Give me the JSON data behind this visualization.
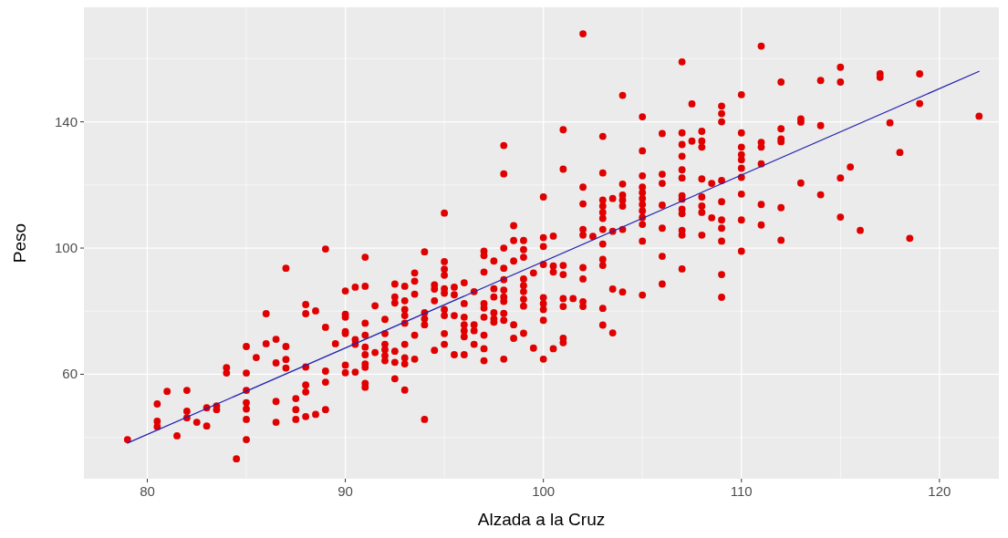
{
  "chart_data": {
    "type": "scatter",
    "xlabel": "Alzada a la Cruz",
    "ylabel": "Peso",
    "xlim": [
      76.8,
      123.0
    ],
    "ylim": [
      26.9,
      176.3
    ],
    "xticks": [
      80,
      90,
      100,
      110,
      120
    ],
    "yticks": [
      60,
      100,
      140
    ],
    "grid": true,
    "series": [
      {
        "marker": "circle",
        "color": "#e00000",
        "x": [
          79,
          80.5,
          80.5,
          80.5,
          81,
          81.5,
          82,
          82,
          82,
          82.5,
          83,
          83,
          83.5,
          83.5,
          84,
          84,
          84.5,
          85,
          85,
          85,
          85,
          85,
          85,
          85,
          85.5,
          86,
          86,
          86.5,
          86.5,
          86.5,
          86.5,
          87,
          87,
          87,
          87,
          87.5,
          87.5,
          87.5,
          88,
          88,
          88,
          88,
          88,
          88,
          88.5,
          88.5,
          89,
          89,
          89,
          89,
          89,
          89.5,
          90,
          90,
          90,
          90,
          90,
          90,
          90,
          90.5,
          90.5,
          90.5,
          90.5,
          91,
          91,
          91,
          91,
          91,
          91,
          91,
          91,
          91,
          91,
          91.5,
          91.5,
          92,
          92,
          92,
          92,
          92,
          92,
          92.5,
          92.5,
          92.5,
          92.5,
          92.5,
          92.5,
          93,
          93,
          93,
          93,
          93,
          93,
          93,
          93,
          93,
          93.5,
          93.5,
          93.5,
          93.5,
          93.5,
          94,
          94,
          94,
          94,
          94,
          94.5,
          94.5,
          94.5,
          94.5,
          95,
          95,
          95,
          95,
          95,
          95,
          95,
          95,
          95,
          95,
          95.5,
          95.5,
          95.5,
          95.5,
          96,
          96,
          96,
          96,
          96,
          96,
          96,
          96.5,
          96.5,
          96.5,
          96.5,
          97,
          97,
          97,
          97,
          97,
          97,
          97,
          97,
          97,
          97.5,
          97.5,
          97.5,
          97.5,
          97.5,
          97.5,
          98,
          98,
          98,
          98,
          98,
          98,
          98,
          98,
          98,
          98,
          98,
          98.5,
          98.5,
          98.5,
          98.5,
          98.5,
          99,
          99,
          99,
          99,
          99,
          99,
          99,
          99,
          99,
          99.5,
          99.5,
          100,
          100,
          100,
          100,
          100,
          100,
          100,
          100,
          100,
          100.5,
          100.5,
          100.5,
          100.5,
          101,
          101,
          101,
          101,
          101,
          101,
          101,
          101,
          101.5,
          102,
          102,
          102,
          102,
          102,
          102,
          102,
          102,
          102,
          102.5,
          103,
          103,
          103,
          103,
          103,
          103,
          103,
          103,
          103,
          103,
          103,
          103,
          103.5,
          103.5,
          103.5,
          103.5,
          104,
          104,
          104,
          104,
          104,
          104,
          104,
          105,
          105,
          105,
          105,
          105,
          105,
          105,
          105,
          105,
          105,
          105,
          105,
          106,
          106,
          106,
          106,
          106,
          106,
          106,
          107,
          107,
          107,
          107,
          107,
          107,
          107,
          107,
          107,
          107,
          107,
          107,
          107,
          107.5,
          107.5,
          108,
          108,
          108,
          108,
          108,
          108,
          108,
          108,
          108.5,
          108.5,
          109,
          109,
          109,
          109,
          109,
          109,
          109,
          109,
          109,
          109,
          110,
          110,
          110,
          110,
          110,
          110,
          110,
          110,
          110,
          110,
          111,
          111,
          111,
          111,
          111,
          111,
          112,
          112,
          112,
          112,
          112,
          112,
          113,
          113,
          113,
          114,
          114,
          114,
          115,
          115,
          115,
          115,
          115.5,
          116,
          117,
          117,
          117.5,
          118,
          118.5,
          119,
          119,
          122
        ],
        "values": [
          39.3,
          50.6,
          45.1,
          43.4,
          54.6,
          40.5,
          54.9,
          48.3,
          46.2,
          44.8,
          49.4,
          43.6,
          50,
          48.8,
          62.1,
          60.4,
          33.2,
          68.8,
          60.4,
          54.9,
          51,
          49,
          45.7,
          39.3,
          65.3,
          79.2,
          69.7,
          71.1,
          63.6,
          51.4,
          44.8,
          93.6,
          68.8,
          64.7,
          62,
          52.3,
          48.8,
          45.7,
          82.1,
          79.2,
          62.3,
          56.6,
          54.4,
          46.6,
          80.1,
          47.3,
          99.7,
          74.9,
          61,
          57.5,
          48.8,
          69.7,
          86.4,
          79,
          78.1,
          73.5,
          72.9,
          62.9,
          60.5,
          87.6,
          71,
          69.5,
          60.7,
          97.1,
          87.9,
          76.2,
          72.4,
          68.6,
          66.2,
          63.3,
          62.2,
          57.1,
          55.9,
          81.7,
          66.9,
          77.4,
          72.9,
          69.5,
          67.8,
          65.9,
          64.3,
          88.6,
          84.5,
          82.6,
          67.3,
          63.8,
          58.6,
          87.9,
          83.3,
          80.5,
          78.6,
          76.2,
          69.5,
          65.2,
          63.3,
          55,
          92.1,
          89.5,
          85.4,
          72.4,
          64.8,
          98.8,
          79.5,
          77.6,
          75.7,
          45.7,
          88.3,
          87,
          83.3,
          67.6,
          111.1,
          95.7,
          93.3,
          91.4,
          87.1,
          85.7,
          80.5,
          78.6,
          72.9,
          69.5,
          87.6,
          85.2,
          78.6,
          66.2,
          89,
          82.4,
          78.1,
          75.7,
          73.8,
          71.9,
          66.2,
          86.2,
          75.7,
          73.8,
          69.5,
          99,
          97.6,
          92.4,
          82.4,
          81,
          78.1,
          72.4,
          68.1,
          64.3,
          95.9,
          87.1,
          84.5,
          79.5,
          77.6,
          76.5,
          132.5,
          123.5,
          100,
          93.6,
          90,
          86.7,
          84.5,
          83.1,
          79.3,
          77.1,
          64.8,
          107.1,
          102.4,
          95.9,
          75.7,
          71.4,
          102.4,
          99.5,
          97.1,
          90.2,
          88.1,
          86.2,
          83.8,
          81.6,
          73,
          92.1,
          68.3,
          116.2,
          103.3,
          100.5,
          94.8,
          84.3,
          82.4,
          80.5,
          77.1,
          64.8,
          103.8,
          94.3,
          92.4,
          68.1,
          137.5,
          125,
          94.5,
          91.6,
          84,
          81.5,
          71.4,
          70,
          84,
          167.9,
          119.3,
          114,
          105.9,
          104.1,
          93.8,
          90.2,
          83,
          81.5,
          103.7,
          135.4,
          123.8,
          115.2,
          113.3,
          111.3,
          109.4,
          105.9,
          101.3,
          96.4,
          94.5,
          80.9,
          75.6,
          115.7,
          105.3,
          87,
          73.1,
          148.4,
          120.3,
          116.8,
          115.2,
          113.3,
          105.9,
          86.1,
          141.6,
          130.8,
          122.9,
          119.3,
          117.6,
          115.7,
          113.8,
          111.8,
          109.7,
          107.5,
          102.2,
          85.1,
          136.3,
          123.4,
          120.5,
          113.6,
          106.3,
          97.4,
          88.6,
          159,
          136.5,
          132.8,
          129.1,
          124.8,
          122.2,
          116.6,
          115.5,
          112.3,
          110.9,
          105.6,
          104.1,
          93.4,
          145.7,
          133.9,
          137,
          133.9,
          132,
          121.9,
          116.2,
          113.3,
          111.3,
          104.1,
          120.5,
          109.6,
          145,
          142.6,
          140,
          121.4,
          114.7,
          108.9,
          106.3,
          102.2,
          91.6,
          84.4,
          148.6,
          136.5,
          132,
          129.6,
          128,
          125.3,
          122.4,
          117.1,
          108.9,
          99,
          164,
          133.5,
          132,
          126.7,
          113.8,
          107.3,
          152.6,
          137.8,
          134.6,
          133.7,
          112.8,
          102.5,
          140.9,
          139.9,
          120.6,
          153.1,
          138.8,
          116.9,
          157.3,
          152.6,
          122.2,
          109.8,
          125.7,
          105.6,
          155.2,
          154.1,
          139.7,
          130.3,
          103.1,
          155.2,
          145.8,
          141.8
        ]
      },
      {
        "type": "line",
        "color": "#2222b0",
        "x": [
          79,
          122
        ],
        "values": [
          38.2,
          156.0
        ]
      }
    ]
  }
}
